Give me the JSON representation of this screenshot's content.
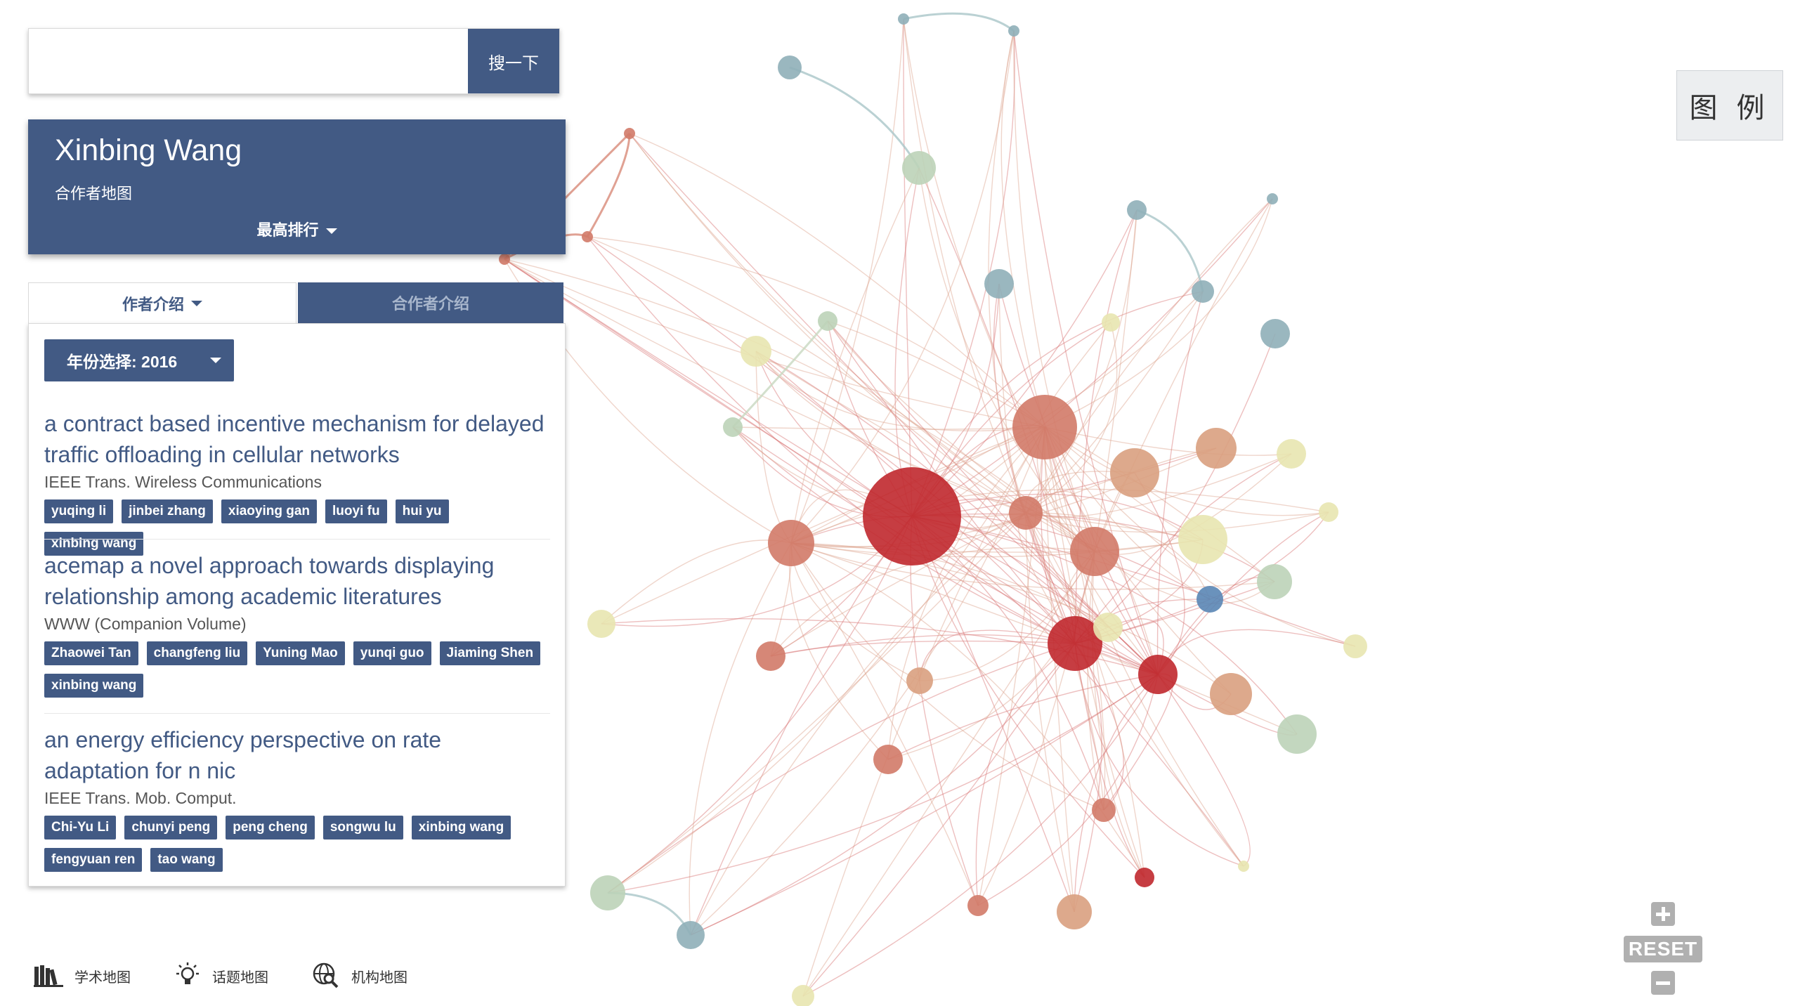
{
  "search": {
    "placeholder": "",
    "value": "",
    "button_label": "搜一下"
  },
  "author_card": {
    "name": "Xinbing Wang",
    "subtitle": "合作者地图",
    "rank_dropdown": "最高排行"
  },
  "tabs": [
    {
      "label": "作者介绍",
      "active": true
    },
    {
      "label": "合作者介绍",
      "active": false
    }
  ],
  "year_select": {
    "label": "年份选择: 2016"
  },
  "papers": [
    {
      "title": "a contract based incentive mechanism for delayed traffic offloading in cellular networks",
      "venue": "IEEE Trans. Wireless Communications",
      "authors": [
        "yuqing li",
        "jinbei zhang",
        "xiaoying gan",
        "luoyi fu",
        "hui yu",
        "xinbing wang"
      ]
    },
    {
      "title": "acemap a novel approach towards displaying relationship among academic literatures",
      "venue": "WWW (Companion Volume)",
      "authors": [
        "Zhaowei Tan",
        "changfeng liu",
        "Yuning Mao",
        "yunqi guo",
        "Jiaming Shen",
        "xinbing wang"
      ]
    },
    {
      "title": "an energy efficiency perspective on rate adaptation for n nic",
      "venue": "IEEE Trans. Mob. Comput.",
      "authors": [
        "Chi-Yu Li",
        "chunyi peng",
        "peng cheng",
        "songwu lu",
        "xinbing wang",
        "fengyuan ren",
        "tao wang"
      ]
    }
  ],
  "legend_button": "图 例",
  "zoom": {
    "plus_icon": "plus-icon",
    "reset_label": "RESET",
    "minus_icon": "minus-icon"
  },
  "bottom_nav": [
    {
      "label": "学术地图",
      "icon": "books-icon"
    },
    {
      "label": "话题地图",
      "icon": "lightbulb-icon"
    },
    {
      "label": "机构地图",
      "icon": "globe-search-icon"
    }
  ],
  "colors": {
    "primary": "#425a84",
    "node_red": "#c0282d",
    "node_salmon": "#d17a68",
    "node_peach": "#d9a080",
    "node_yellow": "#e8e6b0",
    "node_sage": "#bcd3b8",
    "node_steel": "#8fafb8",
    "node_blue": "#5a86b5"
  }
}
